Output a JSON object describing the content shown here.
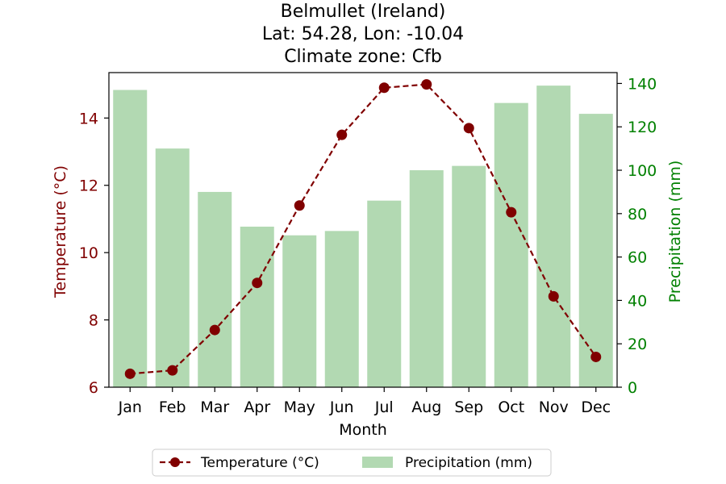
{
  "chart_data": {
    "type": "bar+line",
    "title_lines": [
      "Belmullet (Ireland)",
      "Lat: 54.28, Lon: -10.04",
      "Climate zone: Cfb"
    ],
    "xlabel": "Month",
    "ylabel_left": "Temperature (°C)",
    "ylabel_right": "Precipitation (mm)",
    "categories": [
      "Jan",
      "Feb",
      "Mar",
      "Apr",
      "May",
      "Jun",
      "Jul",
      "Aug",
      "Sep",
      "Oct",
      "Nov",
      "Dec"
    ],
    "series": [
      {
        "name": "Temperature (°C)",
        "kind": "line",
        "axis": "left",
        "color": "#800000",
        "values": [
          6.4,
          6.5,
          7.7,
          9.1,
          11.4,
          13.5,
          14.9,
          15.0,
          13.7,
          11.2,
          8.7,
          6.9
        ]
      },
      {
        "name": "Precipitation (mm)",
        "kind": "bar",
        "axis": "right",
        "color": "#b2d9b2",
        "values": [
          137,
          110,
          90,
          74,
          70,
          72,
          86,
          100,
          102,
          131,
          139,
          126
        ]
      }
    ],
    "ylim_left": [
      6,
      15.35
    ],
    "yticks_left": [
      6,
      8,
      10,
      12,
      14
    ],
    "ylim_right": [
      0,
      145
    ],
    "yticks_right": [
      0,
      20,
      40,
      60,
      80,
      100,
      120,
      140
    ],
    "left_axis_color": "#800000",
    "right_axis_color": "#008000",
    "legend_position": "bottom-center",
    "grid": false
  }
}
